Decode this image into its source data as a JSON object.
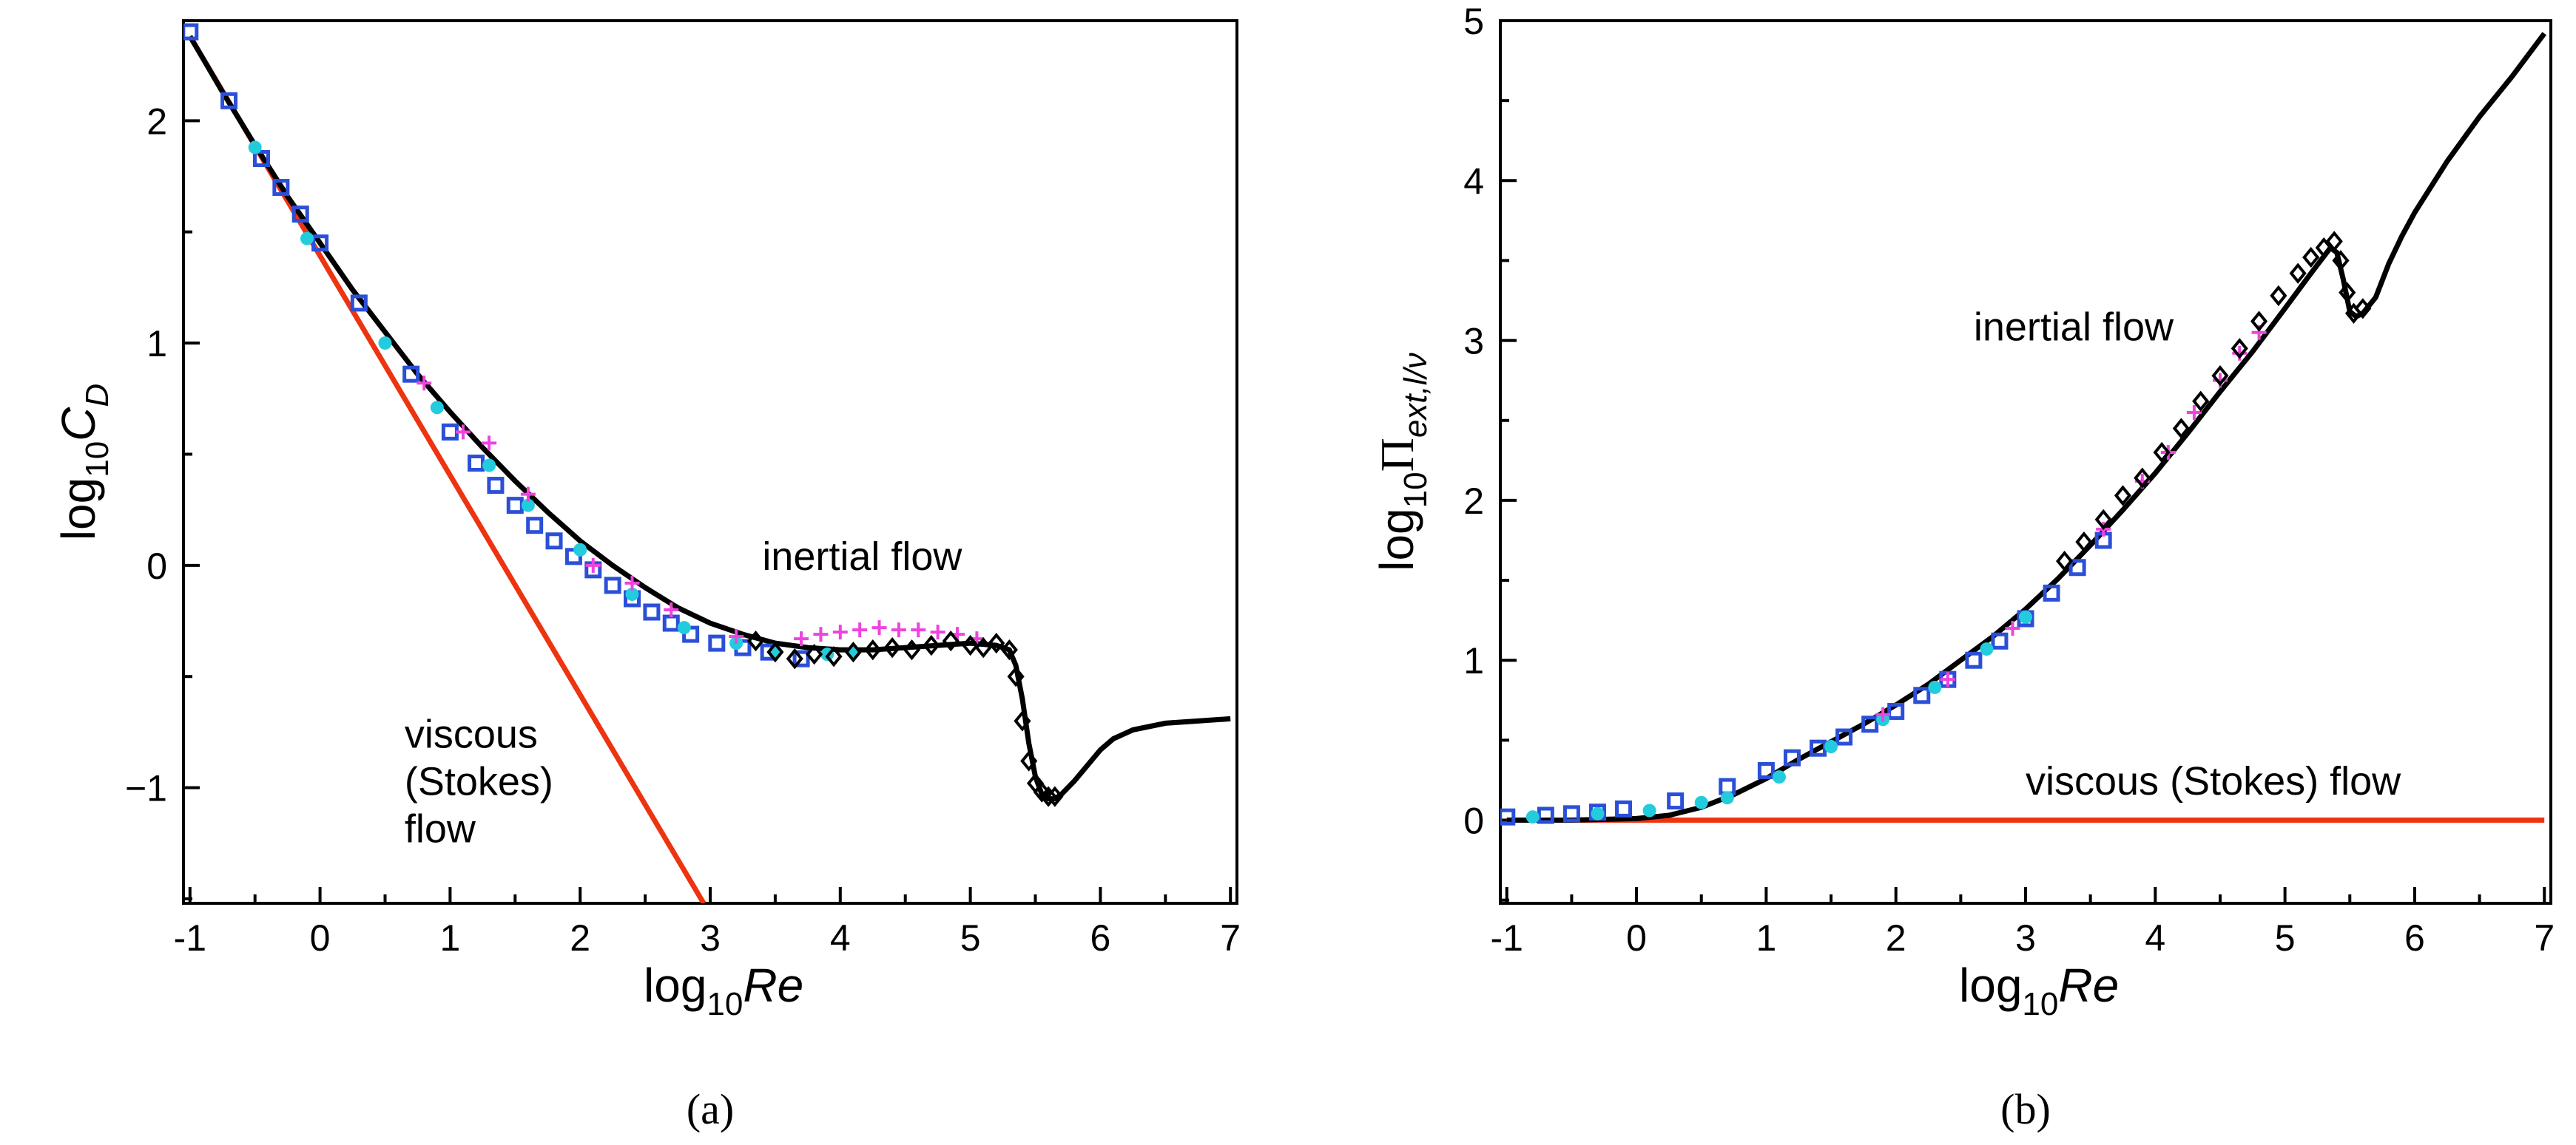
{
  "chart_data": [
    {
      "type": "line",
      "panel_label": "(a)",
      "xlabel": {
        "base": "log",
        "sub": "10",
        "var": "Re"
      },
      "ylabel": {
        "base": "log",
        "sub": "10",
        "var": "C",
        "varsub": "D"
      },
      "xlim": [
        -1.05,
        7.05
      ],
      "ylim": [
        -1.52,
        2.45
      ],
      "xticks": [
        -1,
        0,
        1,
        2,
        3,
        4,
        5,
        6,
        7
      ],
      "yticks": [
        -1,
        0,
        1,
        2
      ],
      "ytick_labels": [
        "−1",
        "0",
        "1",
        "2"
      ],
      "xtick_labels": [
        "-1",
        "0",
        "1",
        "2",
        "3",
        "4",
        "5",
        "6",
        "7"
      ],
      "annotations": [
        {
          "lines": [
            "inertial flow"
          ],
          "x": 3.4,
          "y": -0.02
        },
        {
          "lines": [
            "viscous",
            "(Stokes)",
            "flow"
          ],
          "x": 0.65,
          "y": -0.82
        }
      ],
      "series": [
        {
          "name": "Stokes drag",
          "style": "stokes",
          "x": [
            -1,
            2.95
          ],
          "y": [
            2.38,
            -1.52
          ]
        },
        {
          "name": "fit",
          "style": "fit",
          "x": [
            -1,
            -0.75,
            -0.5,
            -0.25,
            0,
            0.25,
            0.5,
            0.75,
            1,
            1.25,
            1.5,
            1.75,
            2,
            2.25,
            2.5,
            2.75,
            3,
            3.25,
            3.5,
            3.75,
            4,
            4.25,
            4.5,
            4.75,
            5,
            5.2,
            5.3,
            5.35,
            5.4,
            5.45,
            5.5,
            5.55,
            5.6,
            5.65,
            5.7,
            5.8,
            5.9,
            6,
            6.1,
            6.25,
            6.5,
            6.75,
            7
          ],
          "y": [
            2.38,
            2.13,
            1.89,
            1.66,
            1.45,
            1.24,
            1.05,
            0.86,
            0.69,
            0.53,
            0.38,
            0.24,
            0.11,
            0.0,
            -0.1,
            -0.19,
            -0.26,
            -0.31,
            -0.35,
            -0.37,
            -0.38,
            -0.38,
            -0.37,
            -0.36,
            -0.35,
            -0.36,
            -0.38,
            -0.45,
            -0.6,
            -0.8,
            -0.95,
            -1.03,
            -1.05,
            -1.05,
            -1.03,
            -0.97,
            -0.9,
            -0.83,
            -0.78,
            -0.74,
            -0.71,
            -0.7,
            -0.69
          ]
        },
        {
          "name": "data blue squares",
          "marker": "square",
          "color": "#2b4fd8",
          "x": [
            -1,
            -0.7,
            -0.45,
            -0.3,
            -0.15,
            0,
            0.3,
            0.7,
            1,
            1.2,
            1.35,
            1.5,
            1.65,
            1.8,
            1.95,
            2.1,
            2.25,
            2.4,
            2.55,
            2.7,
            2.85,
            3.05,
            3.25,
            3.45,
            3.7
          ],
          "y": [
            2.4,
            2.09,
            1.83,
            1.7,
            1.58,
            1.45,
            1.18,
            0.86,
            0.6,
            0.46,
            0.36,
            0.27,
            0.18,
            0.11,
            0.04,
            -0.02,
            -0.09,
            -0.15,
            -0.21,
            -0.26,
            -0.31,
            -0.35,
            -0.37,
            -0.39,
            -0.42
          ]
        },
        {
          "name": "data cyan dots",
          "marker": "dot",
          "color": "#22ccdd",
          "x": [
            -0.5,
            -0.1,
            0.5,
            0.9,
            1.3,
            1.6,
            2.0,
            2.4,
            2.8,
            3.2,
            3.5,
            3.9,
            4.1
          ],
          "y": [
            1.88,
            1.47,
            1.0,
            0.71,
            0.45,
            0.27,
            0.07,
            -0.13,
            -0.28,
            -0.35,
            -0.39,
            -0.4,
            -0.39
          ]
        },
        {
          "name": "data magenta crosses",
          "marker": "cross",
          "color": "#ee44dd",
          "x": [
            0.8,
            1.1,
            1.3,
            1.6,
            2.1,
            2.4,
            2.7,
            3.2,
            3.7,
            3.85,
            4.0,
            4.15,
            4.3,
            4.45,
            4.6,
            4.75,
            4.9,
            5.05
          ],
          "y": [
            0.82,
            0.6,
            0.55,
            0.32,
            0.0,
            -0.08,
            -0.2,
            -0.32,
            -0.33,
            -0.31,
            -0.3,
            -0.29,
            -0.28,
            -0.29,
            -0.29,
            -0.3,
            -0.31,
            -0.33
          ]
        },
        {
          "name": "data black diamonds",
          "marker": "diamond",
          "color": "#000000",
          "x": [
            3.35,
            3.5,
            3.65,
            3.8,
            3.95,
            4.1,
            4.25,
            4.4,
            4.55,
            4.7,
            4.85,
            5.0,
            5.1,
            5.2,
            5.3,
            5.35,
            5.4,
            5.45,
            5.5,
            5.55,
            5.6,
            5.65
          ],
          "y": [
            -0.34,
            -0.39,
            -0.42,
            -0.4,
            -0.41,
            -0.39,
            -0.38,
            -0.37,
            -0.38,
            -0.36,
            -0.34,
            -0.36,
            -0.37,
            -0.35,
            -0.38,
            -0.5,
            -0.7,
            -0.88,
            -0.98,
            -1.02,
            -1.04,
            -1.04
          ]
        }
      ]
    },
    {
      "type": "line",
      "panel_label": "(b)",
      "xlabel": {
        "base": "log",
        "sub": "10",
        "var": "Re"
      },
      "ylabel": {
        "base": "log",
        "sub": "10",
        "var": "Π",
        "varsub": "ext,l/ν"
      },
      "xlim": [
        -1.05,
        7.05
      ],
      "ylim": [
        -0.52,
        5.0
      ],
      "xticks": [
        -1,
        0,
        1,
        2,
        3,
        4,
        5,
        6,
        7
      ],
      "yticks": [
        0,
        1,
        2,
        3,
        4,
        5
      ],
      "ytick_labels": [
        "0",
        "1",
        "2",
        "3",
        "4",
        "5"
      ],
      "xtick_labels": [
        "-1",
        "0",
        "1",
        "2",
        "3",
        "4",
        "5",
        "6",
        "7"
      ],
      "annotations": [
        {
          "lines": [
            "inertial flow"
          ],
          "x": 2.6,
          "y": 3.0
        },
        {
          "lines": [
            "viscous (Stokes) flow"
          ],
          "x": 3.0,
          "y": 0.16
        }
      ],
      "series": [
        {
          "name": "Stokes",
          "style": "stokes",
          "x": [
            -1,
            7
          ],
          "y": [
            0,
            0
          ]
        },
        {
          "name": "fit",
          "style": "fit",
          "x": [
            -1,
            -0.5,
            0,
            0.25,
            0.5,
            0.75,
            1,
            1.25,
            1.5,
            1.75,
            2,
            2.25,
            2.5,
            2.75,
            3,
            3.25,
            3.5,
            3.75,
            4,
            4.25,
            4.5,
            4.75,
            5,
            5.2,
            5.35,
            5.4,
            5.45,
            5.5,
            5.55,
            5.6,
            5.7,
            5.8,
            5.9,
            6,
            6.25,
            6.5,
            6.75,
            7
          ],
          "y": [
            0,
            0,
            0.01,
            0.03,
            0.08,
            0.16,
            0.26,
            0.38,
            0.49,
            0.6,
            0.72,
            0.85,
            1.0,
            1.15,
            1.32,
            1.51,
            1.72,
            1.94,
            2.17,
            2.42,
            2.68,
            2.93,
            3.2,
            3.42,
            3.58,
            3.55,
            3.38,
            3.18,
            3.15,
            3.17,
            3.27,
            3.48,
            3.65,
            3.8,
            4.12,
            4.4,
            4.65,
            4.92
          ]
        },
        {
          "name": "data blue squares",
          "marker": "square",
          "color": "#2b4fd8",
          "x": [
            -1,
            -0.7,
            -0.5,
            -0.3,
            -0.1,
            0.3,
            0.7,
            1.0,
            1.2,
            1.4,
            1.6,
            1.8,
            2.0,
            2.2,
            2.4,
            2.6,
            2.8,
            3.0,
            3.2,
            3.4,
            3.6
          ],
          "y": [
            0.02,
            0.03,
            0.04,
            0.05,
            0.07,
            0.12,
            0.21,
            0.31,
            0.39,
            0.45,
            0.52,
            0.6,
            0.68,
            0.78,
            0.88,
            1.0,
            1.12,
            1.26,
            1.42,
            1.58,
            1.75
          ]
        },
        {
          "name": "data cyan dots",
          "marker": "dot",
          "color": "#22ccdd",
          "x": [
            -0.8,
            -0.3,
            0.1,
            0.5,
            0.7,
            1.1,
            1.5,
            1.9,
            2.3,
            2.7,
            3.0
          ],
          "y": [
            0.02,
            0.04,
            0.06,
            0.11,
            0.14,
            0.27,
            0.46,
            0.63,
            0.83,
            1.07,
            1.27
          ]
        },
        {
          "name": "data magenta crosses",
          "marker": "cross",
          "color": "#ee44dd",
          "x": [
            1.9,
            2.4,
            2.9,
            3.6,
            3.9,
            4.1,
            4.3,
            4.5,
            4.65,
            4.8
          ],
          "y": [
            0.66,
            0.88,
            1.2,
            1.82,
            2.12,
            2.3,
            2.55,
            2.75,
            2.92,
            3.05
          ]
        },
        {
          "name": "data black diamonds",
          "marker": "diamond",
          "color": "#000000",
          "x": [
            3.3,
            3.45,
            3.6,
            3.75,
            3.9,
            4.05,
            4.2,
            4.35,
            4.5,
            4.65,
            4.8,
            4.95,
            5.1,
            5.2,
            5.3,
            5.38,
            5.43,
            5.48,
            5.53,
            5.6
          ],
          "y": [
            1.62,
            1.74,
            1.88,
            2.03,
            2.14,
            2.3,
            2.45,
            2.62,
            2.78,
            2.95,
            3.12,
            3.28,
            3.42,
            3.52,
            3.58,
            3.62,
            3.5,
            3.3,
            3.17,
            3.2
          ]
        }
      ]
    }
  ]
}
